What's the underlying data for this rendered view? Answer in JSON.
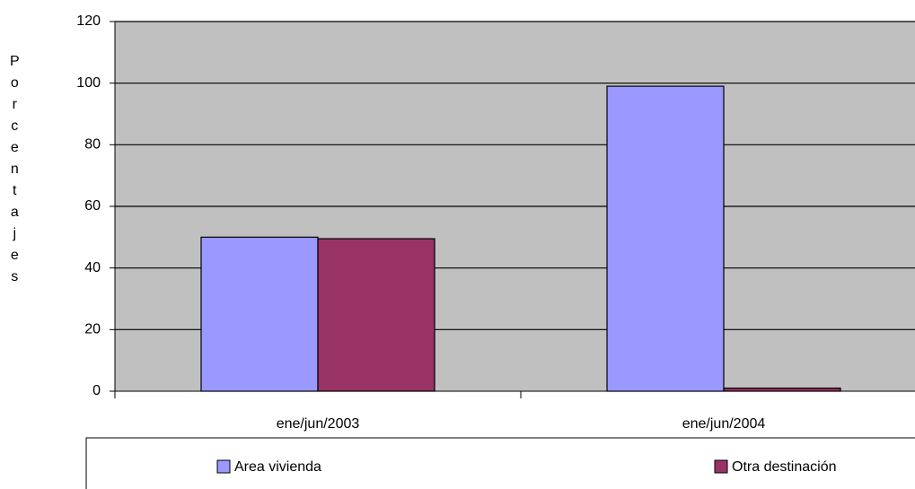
{
  "chart_data": {
    "type": "bar",
    "y_label": "Porcentajes",
    "categories": [
      "ene/jun/2003",
      "ene/jun/2004"
    ],
    "series": [
      {
        "name": "Area vivienda",
        "color": "#9999ff",
        "values": [
          50,
          99
        ]
      },
      {
        "name": "Otra destinación",
        "color": "#993366",
        "values": [
          49.5,
          1
        ]
      }
    ],
    "ylim": [
      0,
      120
    ],
    "yticks": [
      0,
      20,
      40,
      60,
      80,
      100,
      120
    ],
    "grid": true,
    "plot_background": "#c0c0c0",
    "legend": "bottom"
  }
}
